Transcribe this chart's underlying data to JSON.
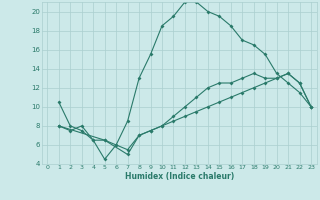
{
  "xlabel": "Humidex (Indice chaleur)",
  "xlim": [
    -0.5,
    23.5
  ],
  "ylim": [
    4,
    21
  ],
  "yticks": [
    4,
    6,
    8,
    10,
    12,
    14,
    16,
    18,
    20
  ],
  "xticks": [
    0,
    1,
    2,
    3,
    4,
    5,
    6,
    7,
    8,
    9,
    10,
    11,
    12,
    13,
    14,
    15,
    16,
    17,
    18,
    19,
    20,
    21,
    22,
    23
  ],
  "background_color": "#cce9e9",
  "grid_color": "#aacfcf",
  "line_color": "#2a7a6a",
  "line1_x": [
    1,
    2,
    3,
    4,
    5,
    6,
    7,
    8,
    9,
    10,
    11,
    12,
    13,
    14,
    15,
    16,
    17,
    18,
    19,
    20,
    21,
    22,
    23
  ],
  "line1_y": [
    8,
    7.5,
    8,
    6.5,
    4.5,
    6,
    8.5,
    13,
    15.5,
    18.5,
    19.5,
    21,
    21,
    20,
    19.5,
    18.5,
    17,
    16.5,
    15.5,
    13.5,
    12.5,
    11.5,
    10
  ],
  "line2_x": [
    1,
    2,
    3,
    4,
    5,
    6,
    7,
    8,
    9,
    10,
    11,
    12,
    13,
    14,
    15,
    16,
    17,
    18,
    19,
    20,
    21,
    22,
    23
  ],
  "line2_y": [
    10.5,
    8,
    7.5,
    6.5,
    6.5,
    6,
    5.5,
    7,
    7.5,
    8,
    8.5,
    9,
    9.5,
    10,
    10.5,
    11,
    11.5,
    12,
    12.5,
    13,
    13.5,
    12.5,
    10
  ],
  "line3_x": [
    1,
    5,
    7,
    8,
    9,
    10,
    11,
    12,
    13,
    14,
    15,
    16,
    17,
    18,
    19,
    20,
    21,
    22,
    23
  ],
  "line3_y": [
    8,
    6.5,
    5,
    7,
    7.5,
    8,
    9,
    10,
    11,
    12,
    12.5,
    12.5,
    13,
    13.5,
    13,
    13,
    13.5,
    12.5,
    10
  ]
}
